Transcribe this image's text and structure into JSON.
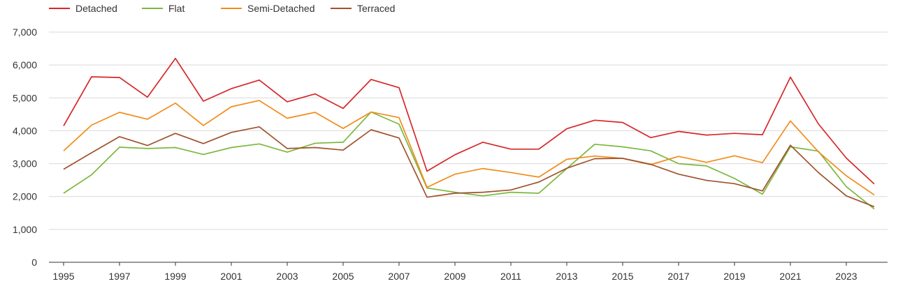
{
  "chart_data": {
    "type": "line",
    "title": "",
    "xlabel": "",
    "ylabel": "",
    "ylim": [
      0,
      7000
    ],
    "yticks": [
      "0",
      "1,000",
      "2,000",
      "3,000",
      "4,000",
      "5,000",
      "6,000",
      "7,000"
    ],
    "yticks_values": [
      0,
      1000,
      2000,
      3000,
      4000,
      5000,
      6000,
      7000
    ],
    "x": [
      1995,
      1996,
      1997,
      1998,
      1999,
      2000,
      2001,
      2002,
      2003,
      2004,
      2005,
      2006,
      2007,
      2008,
      2009,
      2010,
      2011,
      2012,
      2013,
      2014,
      2015,
      2016,
      2017,
      2018,
      2019,
      2020,
      2021,
      2022,
      2023,
      2024
    ],
    "xticks": [
      "1995",
      "1997",
      "1999",
      "2001",
      "2003",
      "2005",
      "2007",
      "2009",
      "2011",
      "2013",
      "2015",
      "2017",
      "2019",
      "2021",
      "2023"
    ],
    "grid": true,
    "legend_position": "top-left",
    "series": [
      {
        "name": "Detached",
        "color": "#d62728",
        "values": [
          4150,
          5640,
          5620,
          5020,
          6200,
          4900,
          5280,
          5540,
          4880,
          5120,
          4680,
          5560,
          5310,
          2770,
          3270,
          3650,
          3440,
          3440,
          4060,
          4320,
          4250,
          3790,
          3980,
          3870,
          3920,
          3880,
          5630,
          4210,
          3170,
          2380
        ]
      },
      {
        "name": "Flat",
        "color": "#7cb83e",
        "values": [
          2100,
          2660,
          3500,
          3460,
          3490,
          3280,
          3490,
          3600,
          3350,
          3620,
          3650,
          4570,
          4200,
          2260,
          2130,
          2020,
          2130,
          2100,
          2850,
          3590,
          3510,
          3390,
          3000,
          2930,
          2550,
          2070,
          3510,
          3380,
          2300,
          1620
        ]
      },
      {
        "name": "Semi-Detached",
        "color": "#f28c1c",
        "values": [
          3390,
          4170,
          4560,
          4350,
          4840,
          4160,
          4730,
          4920,
          4380,
          4560,
          4070,
          4570,
          4400,
          2280,
          2680,
          2850,
          2730,
          2590,
          3130,
          3230,
          3160,
          2970,
          3220,
          3040,
          3240,
          3030,
          4300,
          3360,
          2630,
          2050
        ]
      },
      {
        "name": "Terraced",
        "color": "#a0522d",
        "values": [
          2830,
          3330,
          3820,
          3550,
          3920,
          3610,
          3950,
          4120,
          3460,
          3490,
          3410,
          4030,
          3780,
          1980,
          2100,
          2130,
          2200,
          2440,
          2860,
          3150,
          3160,
          2980,
          2680,
          2490,
          2390,
          2170,
          3560,
          2730,
          2020,
          1690
        ]
      }
    ]
  }
}
